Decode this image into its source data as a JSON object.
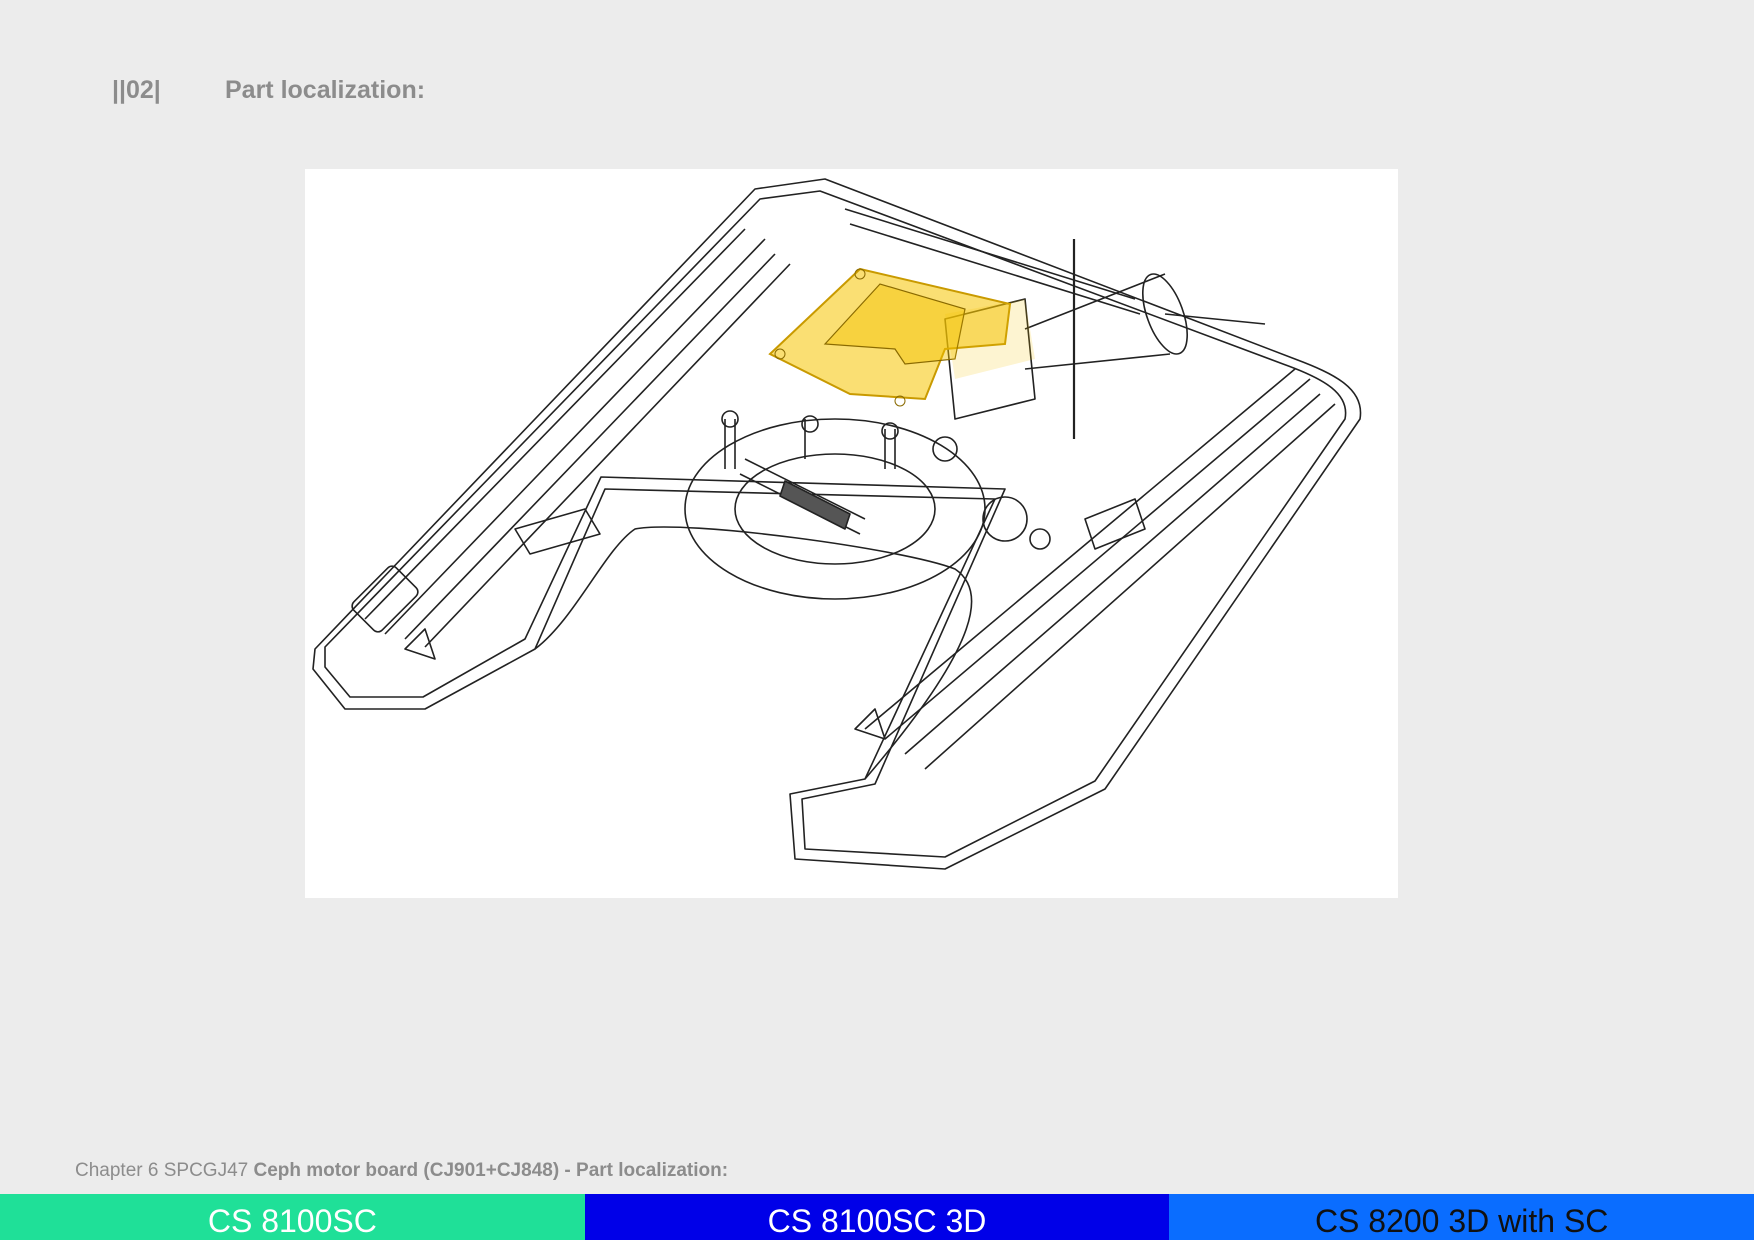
{
  "header": {
    "section_number": "||02|",
    "title": "Part localization:"
  },
  "figure": {
    "highlight_color": "#f5c400",
    "line_color": "#222222"
  },
  "footer": {
    "chapter": "Chapter 6 SPCGJ47",
    "subject": "Ceph motor board (CJ901+CJ848) - Part localization:"
  },
  "tabs": [
    {
      "label": "CS 8100SC",
      "color": "#1fe098"
    },
    {
      "label": "CS 8100SC 3D",
      "color": "#0000e8"
    },
    {
      "label": "CS 8200 3D with SC",
      "color": "#0a6dff"
    }
  ]
}
